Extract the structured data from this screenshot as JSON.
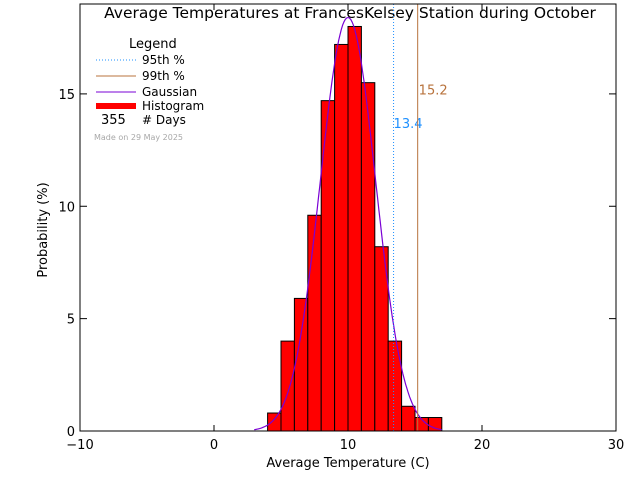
{
  "chart_data": {
    "type": "bar",
    "title": "Average Temperatures at FrancesKelsey Station during October",
    "xlabel": "Average Temperature (C)",
    "ylabel": "Probability (%)",
    "xlim": [
      -10,
      30
    ],
    "ylim": [
      0,
      19
    ],
    "x_ticks": [
      -10,
      0,
      10,
      20,
      30
    ],
    "y_ticks": [
      0,
      5,
      10,
      15
    ],
    "grid": false,
    "legend": {
      "position": "top-left",
      "title": "Legend",
      "entries": [
        {
          "label": "95th %",
          "style": "dotted",
          "color": "#1e90ff"
        },
        {
          "label": "99th %",
          "style": "solid",
          "color": "#b8733d"
        },
        {
          "label": "Gaussian",
          "style": "solid",
          "color": "#7a00d4"
        },
        {
          "label": "Histogram",
          "style": "thick",
          "color": "#ff0000"
        }
      ],
      "count_value": "355",
      "count_label": "# Days"
    },
    "watermark": "Made on 29 May 2025",
    "bins": [
      {
        "x0": 4,
        "x1": 5,
        "value": 0.8
      },
      {
        "x0": 5,
        "x1": 6,
        "value": 4.0
      },
      {
        "x0": 6,
        "x1": 7,
        "value": 5.9
      },
      {
        "x0": 7,
        "x1": 8,
        "value": 9.6
      },
      {
        "x0": 8,
        "x1": 9,
        "value": 14.7
      },
      {
        "x0": 9,
        "x1": 10,
        "value": 17.2
      },
      {
        "x0": 10,
        "x1": 11,
        "value": 18.0
      },
      {
        "x0": 11,
        "x1": 12,
        "value": 15.5
      },
      {
        "x0": 12,
        "x1": 13,
        "value": 8.2
      },
      {
        "x0": 13,
        "x1": 14,
        "value": 4.0
      },
      {
        "x0": 14,
        "x1": 15,
        "value": 1.1
      },
      {
        "x0": 15,
        "x1": 16,
        "value": 0.6
      },
      {
        "x0": 16,
        "x1": 17,
        "value": 0.6
      }
    ],
    "gaussian": {
      "mean": 10.0,
      "sigma": 2.06,
      "peak": 18.4,
      "x_range": [
        3,
        17
      ]
    },
    "percentiles": [
      {
        "name": "95th %",
        "value": 13.4,
        "label": "13.4",
        "color": "#1e90ff",
        "style": "dotted"
      },
      {
        "name": "99th %",
        "value": 15.2,
        "label": "15.2",
        "color": "#b8733d",
        "style": "solid"
      }
    ]
  }
}
